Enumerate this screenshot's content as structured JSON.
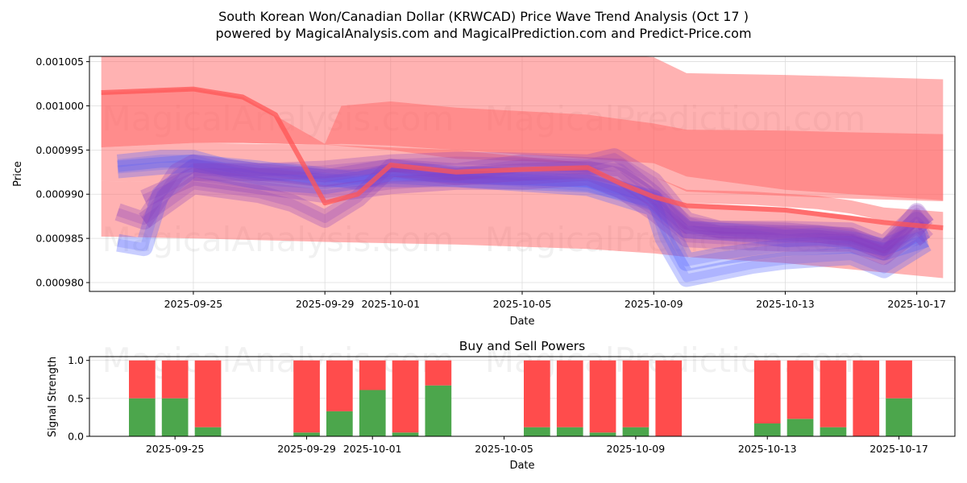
{
  "header": {
    "title": "South Korean Won/Canadian Dollar (KRWCAD) Price Wave Trend Analysis (Oct 17 )",
    "subtitle": "powered by MagicalAnalysis.com and MagicalPrediction.com and Predict-Price.com"
  },
  "watermarks": [
    "MagicalAnalysis.com",
    "MagicalPrediction.com"
  ],
  "colors": {
    "band_red": "#ff6666",
    "price_line": "#ff5555",
    "wave_blue": "#4d5dff",
    "wave_purple": "#8a3cbf",
    "buy": "#4ca64c",
    "sell": "#ff4c4c",
    "grid": "#dddddd"
  },
  "chart_data": [
    {
      "type": "area",
      "title": "",
      "xlabel": "Date",
      "ylabel": "Price",
      "grid": true,
      "x_start_date": "2025-09-25",
      "xlim_days": [
        -3.16,
        23.16
      ],
      "ylim": [
        0.000979,
        0.0010056
      ],
      "x_ticks": [
        {
          "day": 0,
          "label": "2025-09-25"
        },
        {
          "day": 4,
          "label": "2025-09-29"
        },
        {
          "day": 6,
          "label": "2025-10-01"
        },
        {
          "day": 10,
          "label": "2025-10-05"
        },
        {
          "day": 14,
          "label": "2025-10-09"
        },
        {
          "day": 18,
          "label": "2025-10-13"
        },
        {
          "day": 22,
          "label": "2025-10-17"
        }
      ],
      "y_ticks": [
        {
          "value": 0.001005,
          "label": "0.001005"
        },
        {
          "value": 0.001,
          "label": "0.001000"
        },
        {
          "value": 0.000995,
          "label": "0.000995"
        },
        {
          "value": 0.00099,
          "label": "0.000990"
        },
        {
          "value": 0.000985,
          "label": "0.000985"
        },
        {
          "value": 0.00098,
          "label": "0.000980"
        }
      ],
      "bands": [
        {
          "name": "upper-resistance-band",
          "x": [
            -2.8,
            0,
            1.5,
            4,
            6,
            8,
            12,
            14,
            15,
            18,
            20,
            22.8
          ],
          "upper": [
            0.001006,
            0.001006,
            0.001006,
            0.001006,
            0.001006,
            0.001006,
            0.001006,
            0.0010055,
            0.0010037,
            0.0010035,
            0.0010033,
            0.001003
          ],
          "lower": [
            0.0009953,
            0.0009958,
            0.0009958,
            0.0009956,
            0.000995,
            0.000994,
            0.0009935,
            0.000992,
            0.0009903,
            0.0009898,
            0.0009895,
            0.0009892
          ]
        },
        {
          "name": "upper-inner-band",
          "x": [
            -2.8,
            0,
            1.5,
            4,
            4.5,
            6,
            8,
            12,
            14,
            15,
            18,
            20,
            22.8
          ],
          "upper": [
            0.0010015,
            0.001002,
            0.001001,
            0.0009957,
            0.001,
            0.0010005,
            0.0009998,
            0.000999,
            0.000998,
            0.0009973,
            0.0009972,
            0.000997,
            0.0009968
          ],
          "lower": [
            0.0009953,
            0.0009958,
            0.0009958,
            0.0009956,
            0.0009957,
            0.0009955,
            0.000995,
            0.000994,
            0.0009935,
            0.000992,
            0.0009905,
            0.00099,
            0.0009893
          ]
        },
        {
          "name": "lower-support-band",
          "x": [
            -2.8,
            0,
            4,
            8,
            12,
            14,
            15,
            18,
            20,
            22.8
          ],
          "upper": [
            0.0009915,
            0.0009913,
            0.0009912,
            0.000991,
            0.0009905,
            0.0009895,
            0.000989,
            0.0009885,
            0.0009875,
            0.0009862
          ],
          "lower": [
            0.0009852,
            0.000985,
            0.0009846,
            0.0009843,
            0.0009838,
            0.0009833,
            0.0009829,
            0.0009822,
            0.0009815,
            0.0009805
          ]
        },
        {
          "name": "wide-support-band",
          "x": [
            -2.8,
            0,
            4,
            8,
            12,
            14,
            15,
            17,
            19,
            20,
            21,
            22.8
          ],
          "upper": [
            0.0009953,
            0.0009958,
            0.0009956,
            0.000995,
            0.0009935,
            0.000992,
            0.0009905,
            0.0009903,
            0.0009898,
            0.0009893,
            0.0009885,
            0.000988
          ],
          "lower": [
            0.0009915,
            0.0009913,
            0.0009912,
            0.000991,
            0.0009905,
            0.0009895,
            0.000989,
            0.0009888,
            0.0009883,
            0.0009878,
            0.000987,
            0.0009862
          ]
        }
      ],
      "price_line": {
        "name": "price-trend",
        "x": [
          -2.8,
          0,
          1.5,
          2.5,
          4,
          5,
          6,
          8,
          10,
          12,
          13,
          14,
          15,
          18,
          20,
          21,
          22.8
        ],
        "y": [
          0.0010015,
          0.0010019,
          0.001001,
          0.000999,
          0.000989,
          0.00099,
          0.0009933,
          0.0009925,
          0.0009928,
          0.000993,
          0.0009912,
          0.0009897,
          0.0009887,
          0.0009882,
          0.0009873,
          0.0009868,
          0.0009862
        ]
      },
      "waves": [
        {
          "color": "blue",
          "x": [
            -2.3,
            -1.0,
            0,
            1,
            2,
            3,
            4,
            5,
            6,
            7,
            8,
            10,
            12,
            13,
            14,
            15,
            16,
            17,
            18,
            19,
            20,
            21,
            22,
            22.3
          ],
          "y": [
            0.0009935,
            0.000994,
            0.000994,
            0.000993,
            0.0009925,
            0.0009925,
            0.000992,
            0.0009915,
            0.0009925,
            0.0009925,
            0.0009922,
            0.000992,
            0.0009918,
            0.0009905,
            0.0009892,
            0.000986,
            0.0009858,
            0.0009855,
            0.000985,
            0.0009852,
            0.0009848,
            0.000984,
            0.0009855,
            0.000986
          ]
        },
        {
          "color": "blue",
          "x": [
            -2.3,
            -1.0,
            0,
            2,
            4,
            6,
            8,
            10,
            12,
            14,
            15,
            16,
            17,
            18,
            20,
            21,
            22.3
          ],
          "y": [
            0.0009928,
            0.0009932,
            0.0009935,
            0.0009928,
            0.0009918,
            0.0009918,
            0.0009918,
            0.0009915,
            0.0009912,
            0.0009895,
            0.0009823,
            0.000983,
            0.0009835,
            0.000984,
            0.0009843,
            0.0009835,
            0.000985
          ]
        },
        {
          "color": "blue",
          "x": [
            -2.3,
            -1.5,
            -1.0,
            0,
            2,
            4,
            6,
            8,
            10,
            12,
            14,
            14.3,
            15,
            17,
            18,
            20,
            21,
            22.3
          ],
          "y": [
            0.0009845,
            0.000984,
            0.00099,
            0.000993,
            0.0009915,
            0.000991,
            0.0009922,
            0.0009918,
            0.0009913,
            0.0009908,
            0.0009885,
            0.000985,
            0.0009805,
            0.000982,
            0.0009825,
            0.000983,
            0.0009815,
            0.0009845
          ]
        },
        {
          "color": "purple",
          "x": [
            -2.3,
            -1.5,
            -0.5,
            0,
            2,
            4,
            6,
            7,
            8,
            10,
            12,
            13,
            14,
            15,
            16,
            18,
            19,
            20,
            21,
            22,
            22.3
          ],
          "y": [
            0.000988,
            0.000987,
            0.0009925,
            0.0009935,
            0.0009925,
            0.0009918,
            0.000993,
            0.0009925,
            0.000992,
            0.0009925,
            0.0009928,
            0.000992,
            0.0009895,
            0.000986,
            0.0009858,
            0.0009855,
            0.0009855,
            0.000985,
            0.0009835,
            0.000988,
            0.0009865
          ]
        },
        {
          "color": "purple",
          "x": [
            -1.5,
            0,
            2,
            4,
            6,
            8,
            10,
            12,
            13,
            14,
            15,
            16,
            18,
            20,
            21,
            22,
            22.3
          ],
          "y": [
            0.0009895,
            0.000992,
            0.000991,
            0.00099,
            0.000991,
            0.0009915,
            0.0009915,
            0.000992,
            0.0009905,
            0.000988,
            0.000985,
            0.0009848,
            0.0009845,
            0.0009845,
            0.000983,
            0.000986,
            0.0009848
          ]
        },
        {
          "color": "purple",
          "x": [
            -1.5,
            0,
            2,
            3,
            4,
            5,
            6,
            8,
            10,
            12,
            13,
            14,
            15,
            16,
            18,
            20,
            21,
            22,
            22.3
          ],
          "y": [
            0.000987,
            0.000991,
            0.00099,
            0.000989,
            0.0009872,
            0.0009895,
            0.000993,
            0.0009925,
            0.0009935,
            0.0009932,
            0.000993,
            0.00099,
            0.0009865,
            0.000986,
            0.0009858,
            0.0009852,
            0.0009838,
            0.000987,
            0.000986
          ]
        },
        {
          "color": "purple",
          "x": [
            0,
            2,
            4,
            6,
            8,
            10,
            12,
            12.8,
            14,
            15,
            16,
            18,
            20,
            21,
            22,
            22.3
          ],
          "y": [
            0.0009925,
            0.0009925,
            0.0009928,
            0.0009935,
            0.0009938,
            0.0009937,
            0.0009935,
            0.0009942,
            0.0009915,
            0.000987,
            0.000986,
            0.000986,
            0.0009858,
            0.0009843,
            0.0009878,
            0.0009865
          ]
        }
      ]
    },
    {
      "type": "bar",
      "title": "Buy and Sell Powers",
      "xlabel": "Date",
      "ylabel": "Signal Strength",
      "grid": true,
      "x_start_date": "2025-09-25",
      "xlim_days": [
        -2.6,
        23.7
      ],
      "ylim": [
        0,
        1.05
      ],
      "x_ticks": [
        {
          "day": 0,
          "label": "2025-09-25"
        },
        {
          "day": 4,
          "label": "2025-09-29"
        },
        {
          "day": 6,
          "label": "2025-10-01"
        },
        {
          "day": 10,
          "label": "2025-10-05"
        },
        {
          "day": 14,
          "label": "2025-10-09"
        },
        {
          "day": 18,
          "label": "2025-10-13"
        },
        {
          "day": 22,
          "label": "2025-10-17"
        }
      ],
      "y_ticks": [
        {
          "value": 0.0,
          "label": "0.0"
        },
        {
          "value": 0.5,
          "label": "0.5"
        },
        {
          "value": 1.0,
          "label": "1.0"
        }
      ],
      "categories": [
        "2025-09-24",
        "2025-09-25",
        "2025-09-26",
        "2025-09-29",
        "2025-09-30",
        "2025-10-01",
        "2025-10-02",
        "2025-10-03",
        "2025-10-06",
        "2025-10-07",
        "2025-10-08",
        "2025-10-09",
        "2025-10-10",
        "2025-10-13",
        "2025-10-14",
        "2025-10-15",
        "2025-10-16",
        "2025-10-17"
      ],
      "days": [
        -1,
        0,
        1,
        4,
        5,
        6,
        7,
        8,
        11,
        12,
        13,
        14,
        15,
        18,
        19,
        20,
        21,
        22
      ],
      "series": [
        {
          "name": "Buy",
          "values": [
            0.5,
            0.5,
            0.12,
            0.05,
            0.33,
            0.61,
            0.05,
            0.67,
            0.12,
            0.12,
            0.05,
            0.12,
            0.0,
            0.17,
            0.23,
            0.12,
            0.0,
            0.5
          ]
        },
        {
          "name": "Sell",
          "values": [
            0.5,
            0.5,
            0.88,
            0.95,
            0.67,
            0.39,
            0.95,
            0.33,
            0.88,
            0.88,
            0.95,
            0.88,
            1.0,
            0.83,
            0.77,
            0.88,
            1.0,
            0.5
          ]
        }
      ]
    }
  ]
}
